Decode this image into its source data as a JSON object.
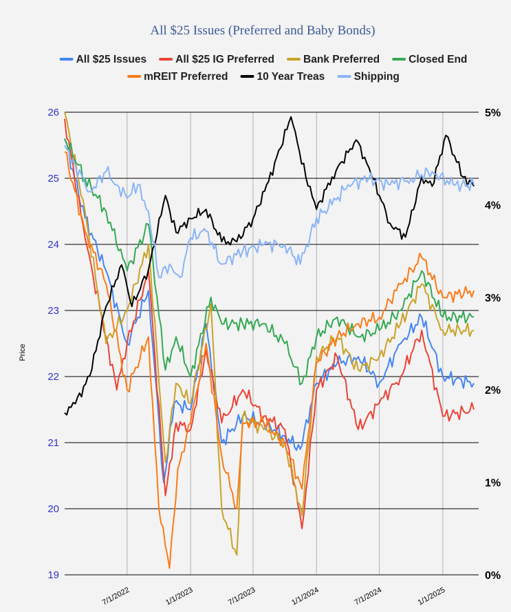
{
  "chart_data": {
    "type": "line",
    "title": "All $25 Issues (Preferred and Baby Bonds)",
    "ylabel": "Price",
    "ylim": [
      19,
      26
    ],
    "y2lim": [
      0,
      5
    ],
    "xlim": [
      "2022-01-01",
      "2025-04-15"
    ],
    "yticks": [
      "19",
      "20",
      "21",
      "22",
      "23",
      "24",
      "25",
      "26"
    ],
    "y2ticks": [
      "0%",
      "1%",
      "2%",
      "3%",
      "4%",
      "5%"
    ],
    "xticks": [
      {
        "label": "7/1/2022",
        "date": "2022-07-01"
      },
      {
        "label": "1/1/2023",
        "date": "2023-01-01"
      },
      {
        "label": "7/1/2023",
        "date": "2023-07-01"
      },
      {
        "label": "1/1/2024",
        "date": "2024-01-01"
      },
      {
        "label": "7/1/2024",
        "date": "2024-07-01"
      },
      {
        "label": "1/1/2025",
        "date": "2025-01-01"
      }
    ],
    "grid": "horizontal and vertical",
    "legend": "top",
    "series": [
      {
        "name": "All $25 Issues",
        "color": "#4285f4",
        "axis": "left",
        "x": [
          "2022-01-01",
          "2022-03-01",
          "2022-05-01",
          "2022-07-01",
          "2022-09-01",
          "2022-10-15",
          "2022-11-15",
          "2023-01-01",
          "2023-02-15",
          "2023-04-01",
          "2023-06-01",
          "2023-08-01",
          "2023-10-01",
          "2023-11-15",
          "2024-01-01",
          "2024-03-01",
          "2024-05-01",
          "2024-07-01",
          "2024-09-01",
          "2024-11-01",
          "2025-01-01",
          "2025-04-01"
        ],
        "values": [
          25.6,
          24.4,
          23.6,
          22.5,
          23.3,
          20.4,
          21.6,
          21.5,
          22.8,
          21.0,
          21.4,
          21.3,
          21.1,
          20.9,
          21.9,
          22.2,
          22.3,
          21.9,
          22.5,
          22.9,
          22.0,
          21.9
        ]
      },
      {
        "name": "All $25 IG Preferred",
        "color": "#ea4335",
        "axis": "left",
        "x": [
          "2022-01-01",
          "2022-03-01",
          "2022-05-01",
          "2022-06-01",
          "2022-07-01",
          "2022-09-01",
          "2022-10-20",
          "2022-11-20",
          "2023-01-01",
          "2023-02-15",
          "2023-04-01",
          "2023-06-01",
          "2023-08-01",
          "2023-10-01",
          "2023-11-20",
          "2024-01-01",
          "2024-03-01",
          "2024-05-01",
          "2024-07-01",
          "2024-09-01",
          "2024-11-01",
          "2025-01-01",
          "2025-04-01"
        ],
        "values": [
          25.9,
          24.1,
          22.6,
          21.8,
          22.5,
          23.6,
          20.2,
          21.3,
          21.2,
          22.4,
          21.3,
          21.8,
          21.4,
          21.2,
          19.7,
          21.8,
          22.3,
          21.2,
          21.6,
          22.0,
          22.7,
          21.4,
          21.5
        ]
      },
      {
        "name": "Bank Preferred",
        "color": "#c9a227",
        "axis": "left",
        "x": [
          "2022-01-01",
          "2022-03-01",
          "2022-05-01",
          "2022-07-01",
          "2022-09-01",
          "2022-10-20",
          "2022-11-20",
          "2023-01-01",
          "2023-03-01",
          "2023-04-01",
          "2023-05-15",
          "2023-06-01",
          "2023-08-01",
          "2023-10-01",
          "2023-11-20",
          "2024-01-01",
          "2024-03-01",
          "2024-05-01",
          "2024-07-01",
          "2024-09-01",
          "2024-11-01",
          "2025-01-01",
          "2025-04-01"
        ],
        "values": [
          26.0,
          24.5,
          22.5,
          23.0,
          24.0,
          20.7,
          21.9,
          21.6,
          23.1,
          20.0,
          19.3,
          21.4,
          21.2,
          21.0,
          19.9,
          22.3,
          22.6,
          22.1,
          22.3,
          22.8,
          23.4,
          22.7,
          22.7
        ]
      },
      {
        "name": "Closed End",
        "color": "#34a853",
        "axis": "left",
        "x": [
          "2022-01-01",
          "2022-03-01",
          "2022-05-01",
          "2022-07-01",
          "2022-09-01",
          "2022-10-20",
          "2022-11-20",
          "2023-01-01",
          "2023-03-01",
          "2023-04-01",
          "2023-06-01",
          "2023-08-01",
          "2023-10-01",
          "2023-11-20",
          "2024-01-01",
          "2024-03-01",
          "2024-05-01",
          "2024-07-01",
          "2024-09-01",
          "2024-11-01",
          "2025-01-01",
          "2025-04-01"
        ],
        "values": [
          25.6,
          25.0,
          24.5,
          23.6,
          24.3,
          22.1,
          22.6,
          22.0,
          23.2,
          22.8,
          22.8,
          22.8,
          22.5,
          21.9,
          22.6,
          22.9,
          22.6,
          22.7,
          23.0,
          23.6,
          22.9,
          22.9
        ]
      },
      {
        "name": "mREIT Preferred",
        "color": "#fa7b17",
        "axis": "left",
        "x": [
          "2022-01-01",
          "2022-03-01",
          "2022-05-01",
          "2022-07-01",
          "2022-09-01",
          "2022-10-01",
          "2022-11-01",
          "2022-11-25",
          "2023-01-01",
          "2023-02-15",
          "2023-04-01",
          "2023-05-15",
          "2023-06-01",
          "2023-08-01",
          "2023-10-01",
          "2023-11-20",
          "2024-01-01",
          "2024-03-01",
          "2024-05-01",
          "2024-07-01",
          "2024-09-01",
          "2024-11-01",
          "2025-01-01",
          "2025-04-01"
        ],
        "values": [
          25.4,
          24.2,
          23.4,
          21.8,
          22.6,
          20.0,
          19.1,
          20.6,
          21.3,
          22.5,
          20.8,
          20.0,
          21.3,
          21.3,
          21.0,
          20.3,
          22.2,
          22.6,
          22.8,
          22.9,
          23.4,
          23.8,
          23.2,
          23.3
        ]
      },
      {
        "name": "10 Year Treas",
        "color": "#000000",
        "axis": "right",
        "x": [
          "2022-01-01",
          "2022-02-01",
          "2022-03-15",
          "2022-05-01",
          "2022-06-15",
          "2022-07-15",
          "2022-09-01",
          "2022-10-20",
          "2022-11-20",
          "2023-01-01",
          "2023-02-15",
          "2023-04-01",
          "2023-05-15",
          "2023-07-01",
          "2023-08-15",
          "2023-10-19",
          "2023-12-01",
          "2024-01-01",
          "2024-02-15",
          "2024-04-25",
          "2024-06-01",
          "2024-08-01",
          "2024-09-15",
          "2024-11-01",
          "2024-12-01",
          "2025-01-10",
          "2025-03-01",
          "2025-04-01"
        ],
        "values": [
          1.75,
          1.85,
          2.15,
          2.9,
          3.35,
          2.9,
          3.3,
          4.1,
          3.7,
          3.85,
          3.95,
          3.6,
          3.6,
          3.85,
          4.25,
          4.95,
          4.3,
          3.95,
          4.3,
          4.7,
          4.4,
          3.8,
          3.65,
          4.3,
          4.2,
          4.75,
          4.3,
          4.2
        ]
      },
      {
        "name": "Shipping",
        "color": "#8ab4f8",
        "axis": "left",
        "x": [
          "2022-01-01",
          "2022-02-01",
          "2022-03-15",
          "2022-05-01",
          "2022-06-01",
          "2022-07-01",
          "2022-08-01",
          "2022-09-01",
          "2022-10-01",
          "2022-11-01",
          "2022-12-01",
          "2023-01-01",
          "2023-02-15",
          "2023-04-01",
          "2023-06-01",
          "2023-08-01",
          "2023-10-01",
          "2023-11-15",
          "2024-01-01",
          "2024-02-15",
          "2024-04-01",
          "2024-06-01",
          "2024-08-01",
          "2024-10-01",
          "2024-12-01",
          "2025-02-01",
          "2025-04-01"
        ],
        "values": [
          25.5,
          25.2,
          24.8,
          25.1,
          24.9,
          24.7,
          24.9,
          24.5,
          23.5,
          23.7,
          23.5,
          24.1,
          24.2,
          23.7,
          23.9,
          24.0,
          24.0,
          23.7,
          24.4,
          24.6,
          24.9,
          25.0,
          24.9,
          25.0,
          25.1,
          24.9,
          24.9
        ]
      }
    ]
  }
}
